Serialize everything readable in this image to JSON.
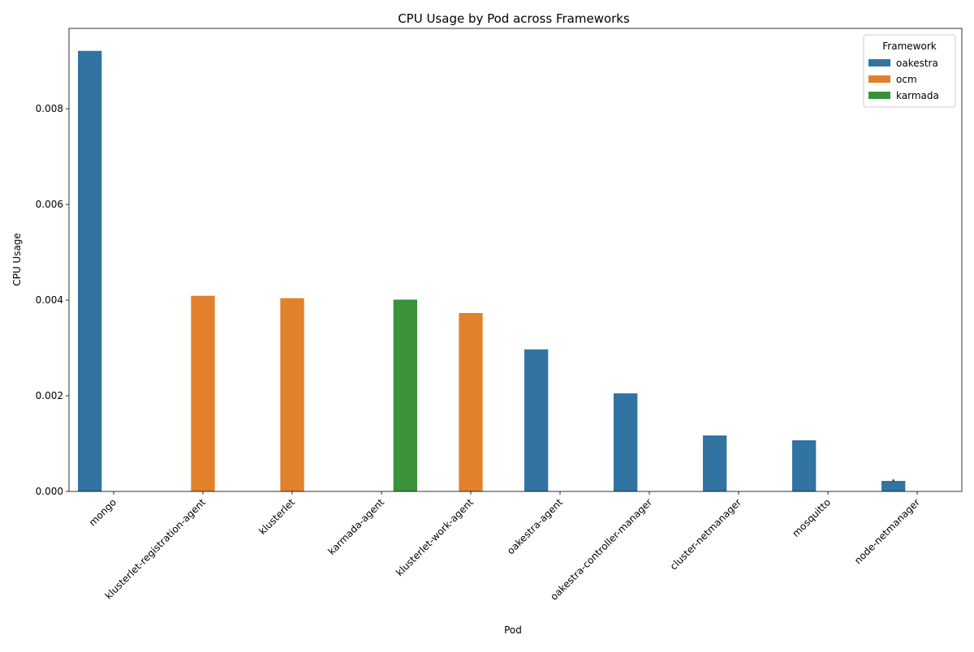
{
  "chart_data": {
    "type": "bar",
    "title": "CPU Usage by Pod across Frameworks",
    "xlabel": "Pod",
    "ylabel": "CPU Usage",
    "categories": [
      "mongo",
      "klusterlet-registration-agent",
      "klusterlet",
      "karmada-agent",
      "klusterlet-work-agent",
      "oakestra-agent",
      "oakestra-controller-manager",
      "cluster-netmanager",
      "mosquitto",
      "node-netmanager"
    ],
    "series": [
      {
        "name": "oakestra",
        "color": "#3274a1",
        "values": [
          0.00921,
          null,
          null,
          null,
          null,
          0.00297,
          0.00205,
          0.00117,
          0.00107,
          0.00022
        ]
      },
      {
        "name": "ocm",
        "color": "#e1812c",
        "values": [
          null,
          0.00409,
          0.00404,
          null,
          0.00373,
          null,
          null,
          null,
          null,
          null
        ]
      },
      {
        "name": "karmada",
        "color": "#3a923a",
        "values": [
          null,
          null,
          null,
          0.00401,
          null,
          null,
          null,
          null,
          null,
          null
        ]
      }
    ],
    "error_bars": [
      {
        "series": "oakestra",
        "category": "node-netmanager",
        "low": 0.0002,
        "high": 0.00025
      }
    ],
    "ylim": [
      0,
      0.00968
    ],
    "yticks": [
      0,
      0.002,
      0.004,
      0.006,
      0.008
    ],
    "ytick_labels": [
      "0.000",
      "0.002",
      "0.004",
      "0.006",
      "0.008"
    ],
    "xtick_rotation": 45,
    "grid": false,
    "legend": {
      "title": "Framework",
      "placement": "top-right"
    }
  }
}
